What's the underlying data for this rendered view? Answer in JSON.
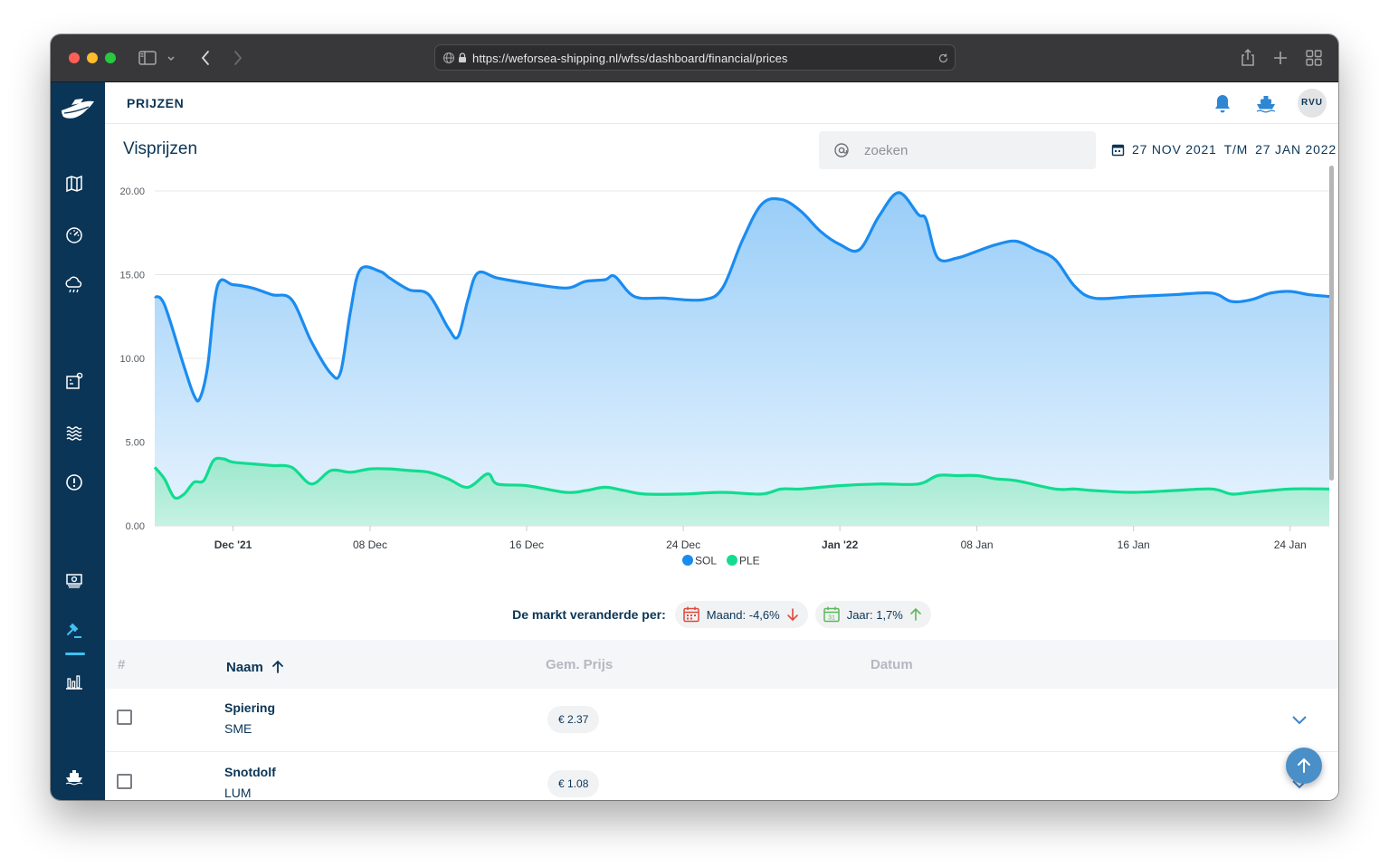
{
  "browser": {
    "url": "https://weforsea-shipping.nl/wfss/dashboard/financial/prices"
  },
  "header": {
    "section_title": "PRIJZEN",
    "avatar_initials": "RVU"
  },
  "page": {
    "title": "Visprijzen",
    "search_placeholder": "zoeken",
    "date_from": "27 NOV 2021",
    "date_sep": "T/M",
    "date_to": "27 JAN 2022"
  },
  "colors": {
    "sidebar": "#0b3556",
    "sol": "#1a8cf0",
    "ple": "#11dc8f",
    "accent": "#3fc1f2"
  },
  "chart_data": {
    "type": "area",
    "title": "",
    "xlabel": "",
    "ylabel": "",
    "ylim": [
      0,
      20
    ],
    "yticks": [
      "0.00",
      "5.00",
      "10.00",
      "15.00",
      "20.00"
    ],
    "xticks": [
      {
        "day": 4,
        "label": "Dec '21",
        "bold": true
      },
      {
        "day": 11,
        "label": "08 Dec",
        "bold": false
      },
      {
        "day": 19,
        "label": "16 Dec",
        "bold": false
      },
      {
        "day": 27,
        "label": "24 Dec",
        "bold": false
      },
      {
        "day": 35,
        "label": "Jan '22",
        "bold": true
      },
      {
        "day": 42,
        "label": "08 Jan",
        "bold": false
      },
      {
        "day": 50,
        "label": "16 Jan",
        "bold": false
      },
      {
        "day": 58,
        "label": "24 Jan",
        "bold": false
      }
    ],
    "x_range": [
      0,
      60
    ],
    "series": [
      {
        "name": "SOL",
        "color": "#1a8cf0",
        "points": [
          [
            0,
            13.7
          ],
          [
            0.5,
            13.2
          ],
          [
            1.5,
            9.5
          ],
          [
            2,
            7.8
          ],
          [
            2.3,
            7.6
          ],
          [
            2.7,
            9.5
          ],
          [
            3.2,
            14.3
          ],
          [
            4,
            14.4
          ],
          [
            5,
            14.2
          ],
          [
            6,
            13.8
          ],
          [
            7,
            13.5
          ],
          [
            8,
            11
          ],
          [
            9,
            9.1
          ],
          [
            9.5,
            9.2
          ],
          [
            10,
            12.8
          ],
          [
            10.5,
            15.3
          ],
          [
            11.5,
            15.2
          ],
          [
            12,
            14.8
          ],
          [
            13,
            14.1
          ],
          [
            14,
            13.8
          ],
          [
            15,
            11.8
          ],
          [
            15.5,
            11.3
          ],
          [
            16,
            13.5
          ],
          [
            16.5,
            15.1
          ],
          [
            17.5,
            14.8
          ],
          [
            19,
            14.5
          ],
          [
            21,
            14.2
          ],
          [
            22,
            14.6
          ],
          [
            23,
            14.7
          ],
          [
            23.5,
            14.9
          ],
          [
            24.5,
            13.7
          ],
          [
            26,
            13.6
          ],
          [
            28,
            13.5
          ],
          [
            29,
            14.2
          ],
          [
            30,
            17
          ],
          [
            31,
            19.2
          ],
          [
            32,
            19.5
          ],
          [
            33,
            18.8
          ],
          [
            34,
            17.6
          ],
          [
            35,
            16.8
          ],
          [
            36,
            16.5
          ],
          [
            37,
            18.5
          ],
          [
            38,
            19.9
          ],
          [
            39,
            18.6
          ],
          [
            39.4,
            18.3
          ],
          [
            40,
            16
          ],
          [
            41,
            16
          ],
          [
            42,
            16.4
          ],
          [
            43,
            16.8
          ],
          [
            44,
            17
          ],
          [
            45,
            16.5
          ],
          [
            46,
            15.9
          ],
          [
            47,
            14.3
          ],
          [
            48,
            13.6
          ],
          [
            50,
            13.7
          ],
          [
            52,
            13.8
          ],
          [
            54,
            13.9
          ],
          [
            55,
            13.4
          ],
          [
            56,
            13.5
          ],
          [
            57,
            13.9
          ],
          [
            58,
            14.0
          ],
          [
            59,
            13.8
          ],
          [
            60,
            13.7
          ]
        ]
      },
      {
        "name": "PLE",
        "color": "#11dc8f",
        "points": [
          [
            0,
            3.5
          ],
          [
            0.5,
            2.8
          ],
          [
            1,
            1.7
          ],
          [
            1.5,
            1.9
          ],
          [
            2,
            2.6
          ],
          [
            2.5,
            2.7
          ],
          [
            3,
            3.9
          ],
          [
            3.5,
            4.0
          ],
          [
            4,
            3.8
          ],
          [
            5,
            3.7
          ],
          [
            6,
            3.6
          ],
          [
            7,
            3.5
          ],
          [
            8,
            2.5
          ],
          [
            9,
            3.3
          ],
          [
            10,
            3.2
          ],
          [
            11,
            3.4
          ],
          [
            12,
            3.4
          ],
          [
            13,
            3.3
          ],
          [
            14,
            3.2
          ],
          [
            15,
            2.8
          ],
          [
            16,
            2.3
          ],
          [
            17,
            3.1
          ],
          [
            17.5,
            2.5
          ],
          [
            19,
            2.4
          ],
          [
            21,
            2.0
          ],
          [
            22,
            2.1
          ],
          [
            23,
            2.3
          ],
          [
            24,
            2.1
          ],
          [
            25,
            1.9
          ],
          [
            27,
            1.9
          ],
          [
            29,
            2.0
          ],
          [
            31,
            1.9
          ],
          [
            32,
            2.2
          ],
          [
            33,
            2.2
          ],
          [
            35,
            2.4
          ],
          [
            37,
            2.5
          ],
          [
            39,
            2.5
          ],
          [
            40,
            3.0
          ],
          [
            41,
            3.0
          ],
          [
            42,
            3.0
          ],
          [
            43,
            2.8
          ],
          [
            44,
            2.7
          ],
          [
            46,
            2.2
          ],
          [
            47,
            2.2
          ],
          [
            48,
            2.1
          ],
          [
            50,
            2.0
          ],
          [
            52,
            2.1
          ],
          [
            54,
            2.2
          ],
          [
            55,
            1.9
          ],
          [
            56,
            2.0
          ],
          [
            58,
            2.2
          ],
          [
            60,
            2.2
          ]
        ]
      }
    ],
    "legend": {
      "position": "bottom-center",
      "items": [
        "SOL",
        "PLE"
      ]
    }
  },
  "market": {
    "label": "De markt veranderde per:",
    "month_label": "Maand: -4,6%",
    "month_direction": "down",
    "month_color": "#e0493a",
    "year_label": "Jaar: 1,7%",
    "year_direction": "up",
    "year_color": "#5cb85c"
  },
  "table": {
    "columns": [
      "#",
      "Naam",
      "Gem. Prijs",
      "Datum"
    ],
    "rows": [
      {
        "name": "Spiering",
        "code": "SME",
        "price": "€ 2.37",
        "date": ""
      },
      {
        "name": "Snotdolf",
        "code": "LUM",
        "price": "€ 1.08",
        "date": ""
      }
    ]
  }
}
